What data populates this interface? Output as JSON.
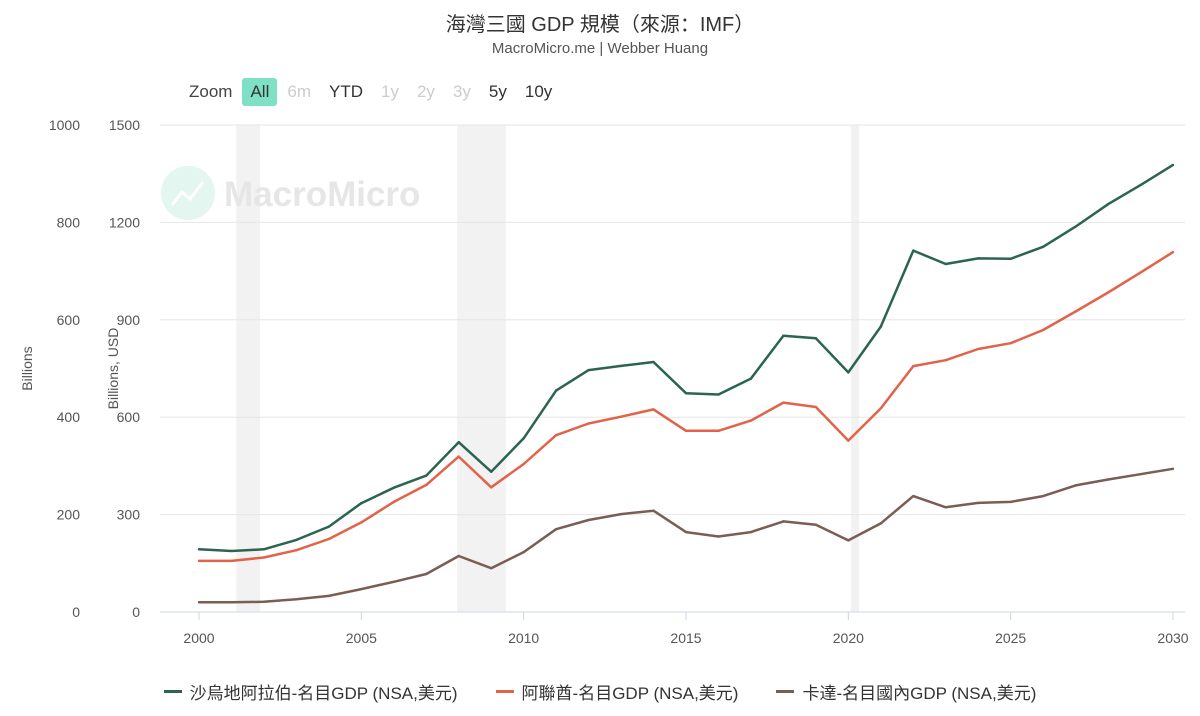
{
  "header": {
    "title": "海灣三國 GDP 規模（來源：IMF）",
    "subtitle": "MacroMicro.me | Webber Huang"
  },
  "zoom": {
    "label": "Zoom",
    "buttons": [
      {
        "label": "All",
        "state": "active"
      },
      {
        "label": "6m",
        "state": "disabled"
      },
      {
        "label": "YTD",
        "state": "enabled"
      },
      {
        "label": "1y",
        "state": "disabled"
      },
      {
        "label": "2y",
        "state": "disabled"
      },
      {
        "label": "3y",
        "state": "disabled"
      },
      {
        "label": "5y",
        "state": "enabled"
      },
      {
        "label": "10y",
        "state": "enabled"
      }
    ]
  },
  "watermark": "MacroMicro",
  "chart_data": {
    "type": "line",
    "x": [
      2000,
      2001,
      2002,
      2003,
      2004,
      2005,
      2006,
      2007,
      2008,
      2009,
      2010,
      2011,
      2012,
      2013,
      2014,
      2015,
      2016,
      2017,
      2018,
      2019,
      2020,
      2021,
      2022,
      2023,
      2024,
      2025,
      2026,
      2027,
      2028,
      2029,
      2030
    ],
    "xlim": [
      2000,
      2030
    ],
    "xticks": [
      "2000",
      "2005",
      "2010",
      "2015",
      "2020",
      "2025",
      "2030"
    ],
    "y_axes": [
      {
        "id": "left",
        "label": "Billions",
        "range": [
          0,
          1000
        ],
        "ticks": [
          "0",
          "200",
          "400",
          "600",
          "800",
          "1000"
        ]
      },
      {
        "id": "right",
        "label": "Billions, USD",
        "range": [
          0,
          1500
        ],
        "ticks": [
          "0",
          "300",
          "600",
          "900",
          "1200",
          "1500"
        ]
      }
    ],
    "grid": true,
    "legend_position": "bottom",
    "recession_bands": [
      [
        2001.15,
        2001.88
      ],
      [
        2007.95,
        2009.45
      ],
      [
        2020.08,
        2020.33
      ]
    ],
    "series": [
      {
        "name": "沙烏地阿拉伯-名目GDP (NSA,美元)",
        "axis": "right",
        "color": "#2b6451",
        "values": [
          193,
          188,
          193,
          222,
          263,
          335,
          383,
          420,
          523,
          432,
          535,
          682,
          745,
          758,
          770,
          674,
          670,
          719,
          851,
          843,
          738,
          879,
          1113,
          1072,
          1089,
          1088,
          1125,
          1187,
          1256,
          1315,
          1377
        ]
      },
      {
        "name": "阿聯酋-名目GDP (NSA,美元)",
        "axis": "left",
        "color": "#e0634a",
        "values": [
          105,
          105,
          112,
          127,
          150,
          184,
          226,
          261,
          319,
          256,
          304,
          363,
          387,
          401,
          416,
          372,
          372,
          393,
          430,
          421,
          352,
          418,
          505,
          517,
          540,
          552,
          579,
          617,
          656,
          697,
          739
        ]
      },
      {
        "name": "卡達-名目國內GDP (NSA,美元)",
        "axis": "left",
        "color": "#7b5d54",
        "values": [
          20,
          20,
          21,
          26,
          33,
          47,
          62,
          78,
          115,
          90,
          123,
          170,
          189,
          201,
          208,
          164,
          155,
          164,
          186,
          179,
          147,
          182,
          238,
          215,
          224,
          226,
          238,
          260,
          272,
          283,
          294
        ]
      }
    ]
  }
}
